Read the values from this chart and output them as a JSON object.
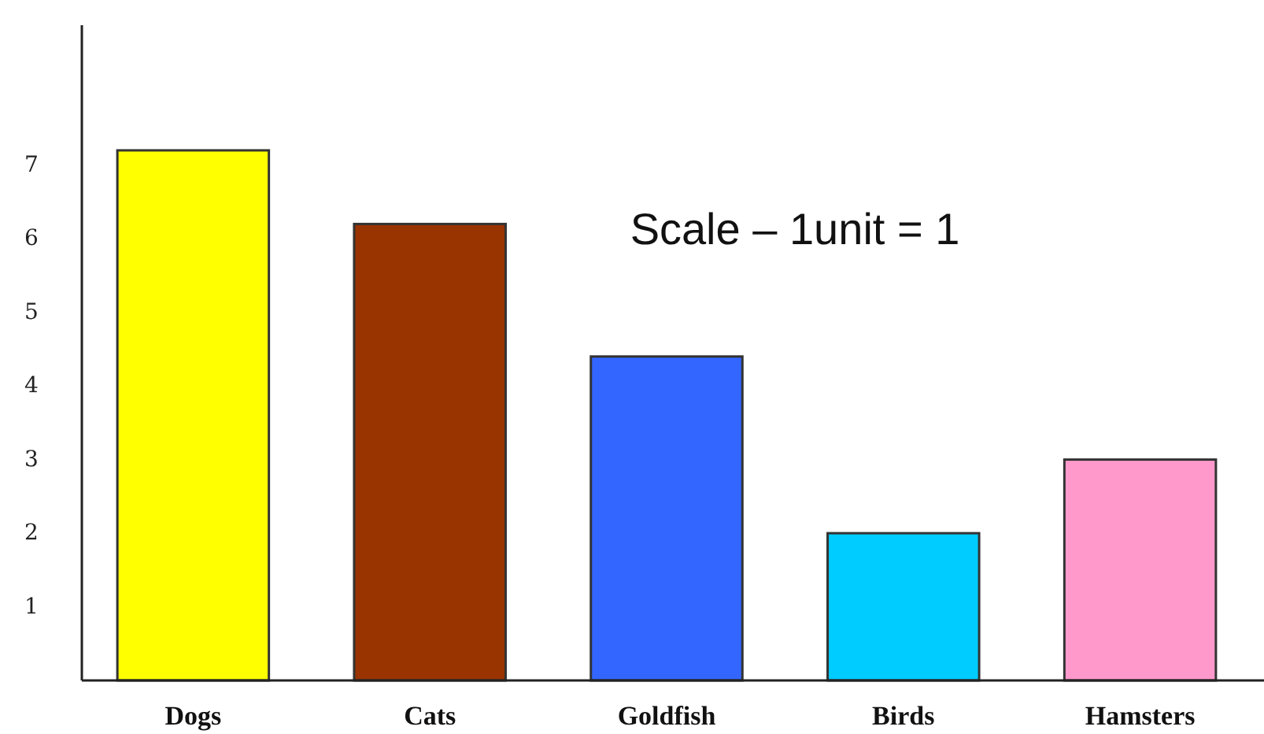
{
  "chart_data": {
    "type": "bar",
    "categories": [
      "Dogs",
      "Cats",
      "Goldfish",
      "Birds",
      "Hamsters"
    ],
    "values": [
      7.2,
      6.2,
      4.4,
      2,
      3
    ],
    "colors": [
      "#ffff00",
      "#993300",
      "#3366ff",
      "#00ccff",
      "#ff99cc"
    ],
    "ylim": [
      0,
      8.9
    ],
    "yticks": [
      1,
      2,
      3,
      4,
      5,
      6,
      7
    ],
    "annotations": [
      "Scale – 1unit = 1"
    ]
  }
}
